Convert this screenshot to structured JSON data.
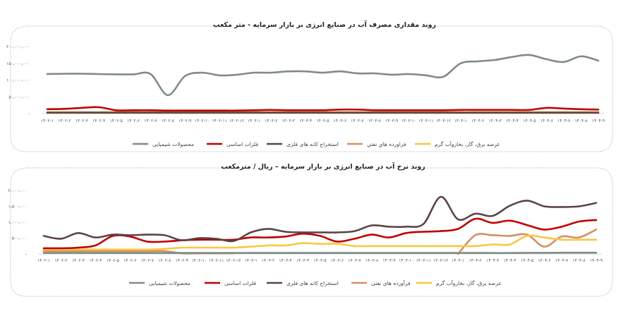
{
  "chart_data": [
    {
      "type": "line",
      "title": "روند مقداری مصرف آب در صنایع انرژی بر بازار سرمایه - متر مکعب",
      "xlabel": "",
      "ylabel": "",
      "ylim": [
        0,
        200000000
      ],
      "yticks": [
        0,
        50000000,
        100000000,
        150000000,
        200000000
      ],
      "ytick_labels": [
        "-",
        "۵۰,۰۰۰,۰۰۰",
        "۱۰۰,۰۰۰,۰۰۰",
        "۱۵۰,۰۰۰,۰۰۰",
        "۲۰۰,۰۰۰,۰۰۰"
      ],
      "grid": false,
      "legend": "bottom",
      "categories": [
        "۱۴۰۲-۱",
        "۱۴۰۲-۲",
        "۱۴۰۲-۳",
        "۱۴۰۲-۴",
        "۱۴۰۲-۵",
        "۱۴۰۲-۶",
        "۱۴۰۲-۷",
        "۱۴۰۲-۸",
        "۱۴۰۲-۹",
        "۱۴۰۲-۱۰",
        "۱۴۰۲-۱۱",
        "۱۴۰۲-۱۲",
        "۱۴۰۳-۱",
        "۱۴۰۳-۲",
        "۱۴۰۳-۳",
        "۱۴۰۳-۴",
        "۱۴۰۳-۵",
        "۱۴۰۳-۶",
        "۱۴۰۳-۷",
        "۱۴۰۳-۸",
        "۱۴۰۳-۹",
        "۱۴۰۳-۱۰",
        "۱۴۰۳-۱۱",
        "۱۴۰۳-۱۲",
        "۱۴۰۴-۱",
        "۱۴۰۴-۲",
        "۱۴۰۴-۳",
        "۱۴۰۴-۴",
        "۱۴۰۴-۵",
        "۱۴۰۴-۶",
        "۱۴۰۴-۷",
        "۱۴۰۴-۸",
        "۱۴۰۴-۹"
      ],
      "series": [
        {
          "name": "محصولات شیمیایی",
          "color": "#7f8c85",
          "values": [
            118000000,
            119000000,
            119000000,
            118000000,
            117000000,
            117000000,
            118000000,
            55000000,
            112000000,
            122000000,
            114000000,
            116000000,
            122000000,
            122000000,
            126000000,
            126000000,
            122000000,
            126000000,
            120000000,
            120000000,
            116000000,
            118000000,
            114000000,
            110000000,
            150000000,
            156000000,
            160000000,
            169000000,
            175000000,
            162000000,
            154000000,
            171000000,
            158000000
          ]
        },
        {
          "name": "فلزات اساسی",
          "color": "#c00000",
          "values": [
            13000000,
            14000000,
            17000000,
            19000000,
            10000000,
            10000000,
            10000000,
            9000000,
            9000000,
            9000000,
            9000000,
            9000000,
            10000000,
            11000000,
            10000000,
            10000000,
            10000000,
            12000000,
            12000000,
            10000000,
            10000000,
            10000000,
            10000000,
            10000000,
            11000000,
            11000000,
            11000000,
            11000000,
            11000000,
            17000000,
            15000000,
            13000000,
            12000000
          ]
        },
        {
          "name": "استخراج کانه های فلزی",
          "color": "#5b4448",
          "values": [
            3000000,
            3000000,
            3000000,
            3000000,
            3000000,
            3000000,
            3000000,
            3000000,
            3000000,
            3000000,
            3000000,
            3000000,
            3000000,
            3000000,
            3000000,
            3000000,
            3000000,
            3000000,
            3000000,
            3000000,
            3000000,
            3000000,
            3000000,
            3000000,
            3000000,
            3000000,
            3000000,
            3000000,
            3000000,
            3000000,
            3000000,
            3000000,
            3000000
          ]
        },
        {
          "name": "فراورده هاي نفتي",
          "color": "#d49060",
          "values": [
            2000000,
            2000000,
            2000000,
            2000000,
            2000000,
            2000000,
            2000000,
            2000000,
            2000000,
            2000000,
            2000000,
            2000000,
            2000000,
            2000000,
            2000000,
            2000000,
            2000000,
            2000000,
            2000000,
            2000000,
            2000000,
            2000000,
            2000000,
            2000000,
            2000000,
            2000000,
            2000000,
            2000000,
            2000000,
            2000000,
            2000000,
            2000000,
            2000000
          ]
        },
        {
          "name": "عرضه برق، گاز، بخاروآب گرم",
          "color": "#fbc641",
          "values": [
            4000000,
            4000000,
            4000000,
            4000000,
            4000000,
            4000000,
            4000000,
            4000000,
            4000000,
            4000000,
            4000000,
            4000000,
            4000000,
            4000000,
            4000000,
            4000000,
            4000000,
            4000000,
            4000000,
            4000000,
            4000000,
            4000000,
            4000000,
            4000000,
            4000000,
            4000000,
            4000000,
            4000000,
            4000000,
            4000000,
            4000000,
            4000000,
            4000000
          ]
        }
      ]
    },
    {
      "type": "line",
      "title": "روند نرخ آب در صنایع انرژی بر بازار سرمایه – ریال / مترمکعب",
      "xlabel": "",
      "ylabel": "",
      "ylim": [
        0,
        2000000
      ],
      "yticks": [
        0,
        500000,
        1000000,
        1500000,
        2000000
      ],
      "ytick_labels": [
        "-",
        "۵۰۰,۰۰۰",
        "۱,۰۰۰,۰۰۰",
        "۱,۵۰۰,۰۰۰",
        "۲,۰۰۰,۰۰۰"
      ],
      "grid": false,
      "legend": "bottom",
      "categories": [
        "۱۴۰۲-۱",
        "۱۴۰۲-۲",
        "۱۴۰۲-۳",
        "۱۴۰۲-۴",
        "۱۴۰۲-۵",
        "۱۴۰۲-۶",
        "۱۴۰۲-۷",
        "۱۴۰۲-۸",
        "۱۴۰۲-۹",
        "۱۴۰۲-۱۰",
        "۱۴۰۲-۱۱",
        "۱۴۰۲-۱۲",
        "۱۴۰۳-۱",
        "۱۴۰۳-۲",
        "۱۴۰۳-۳",
        "۱۴۰۳-۴",
        "۱۴۰۳-۵",
        "۱۴۰۳-۶",
        "۱۴۰۳-۷",
        "۱۴۰۳-۸",
        "۱۴۰۳-۹",
        "۱۴۰۳-۱۰",
        "۱۴۰۳-۱۱",
        "۱۴۰۳-۱۲",
        "۱۴۰۴-۱",
        "۱۴۰۴-۲",
        "۱۴۰۴-۳",
        "۱۴۰۴-۴",
        "۱۴۰۴-۵",
        "۱۴۰۴-۶",
        "۱۴۰۴-۷",
        "۱۴۰۴-۸",
        "۱۴۰۴-۹"
      ],
      "series": [
        {
          "name": "محصولات شیمیایی",
          "color": "#7f8c85",
          "values": [
            30000,
            30000,
            30000,
            30000,
            30000,
            30000,
            30000,
            30000,
            30000,
            30000,
            30000,
            30000,
            30000,
            30000,
            30000,
            30000,
            30000,
            30000,
            30000,
            30000,
            30000,
            30000,
            30000,
            30000,
            30000,
            30000,
            30000,
            30000,
            35000,
            35000,
            40000,
            40000,
            40000
          ]
        },
        {
          "name": "فلزات اساسی",
          "color": "#c00000",
          "values": [
            180000,
            180000,
            200000,
            270000,
            570000,
            550000,
            390000,
            390000,
            430000,
            450000,
            450000,
            450000,
            520000,
            520000,
            550000,
            640000,
            570000,
            390000,
            480000,
            610000,
            520000,
            660000,
            700000,
            720000,
            790000,
            1110000,
            980000,
            1050000,
            910000,
            770000,
            860000,
            1020000,
            1070000
          ]
        },
        {
          "name": "استخراج کانه های فلزی",
          "color": "#5b4448",
          "values": [
            570000,
            480000,
            660000,
            520000,
            610000,
            590000,
            610000,
            590000,
            430000,
            500000,
            480000,
            410000,
            680000,
            790000,
            700000,
            680000,
            680000,
            680000,
            720000,
            900000,
            860000,
            860000,
            950000,
            1800000,
            1090000,
            1270000,
            1200000,
            1520000,
            1680000,
            1500000,
            1480000,
            1500000,
            1610000
          ]
        },
        {
          "name": "فرآورده های نفتی",
          "color": "#d49060",
          "values": [
            90000,
            90000,
            90000,
            90000,
            90000,
            90000,
            90000,
            90000,
            20000,
            20000,
            20000,
            20000,
            null,
            null,
            null,
            null,
            null,
            null,
            null,
            null,
            null,
            null,
            null,
            null,
            0,
            590000,
            590000,
            570000,
            610000,
            230000,
            550000,
            520000,
            770000
          ]
        },
        {
          "name": "عرضه برق، گاز، بخاروآب گرم",
          "color": "#fbc641",
          "values": [
            140000,
            140000,
            140000,
            140000,
            140000,
            140000,
            140000,
            160000,
            200000,
            200000,
            200000,
            200000,
            230000,
            270000,
            270000,
            340000,
            320000,
            320000,
            250000,
            250000,
            250000,
            250000,
            250000,
            250000,
            250000,
            250000,
            300000,
            300000,
            570000,
            520000,
            450000,
            450000,
            450000
          ]
        }
      ]
    }
  ]
}
